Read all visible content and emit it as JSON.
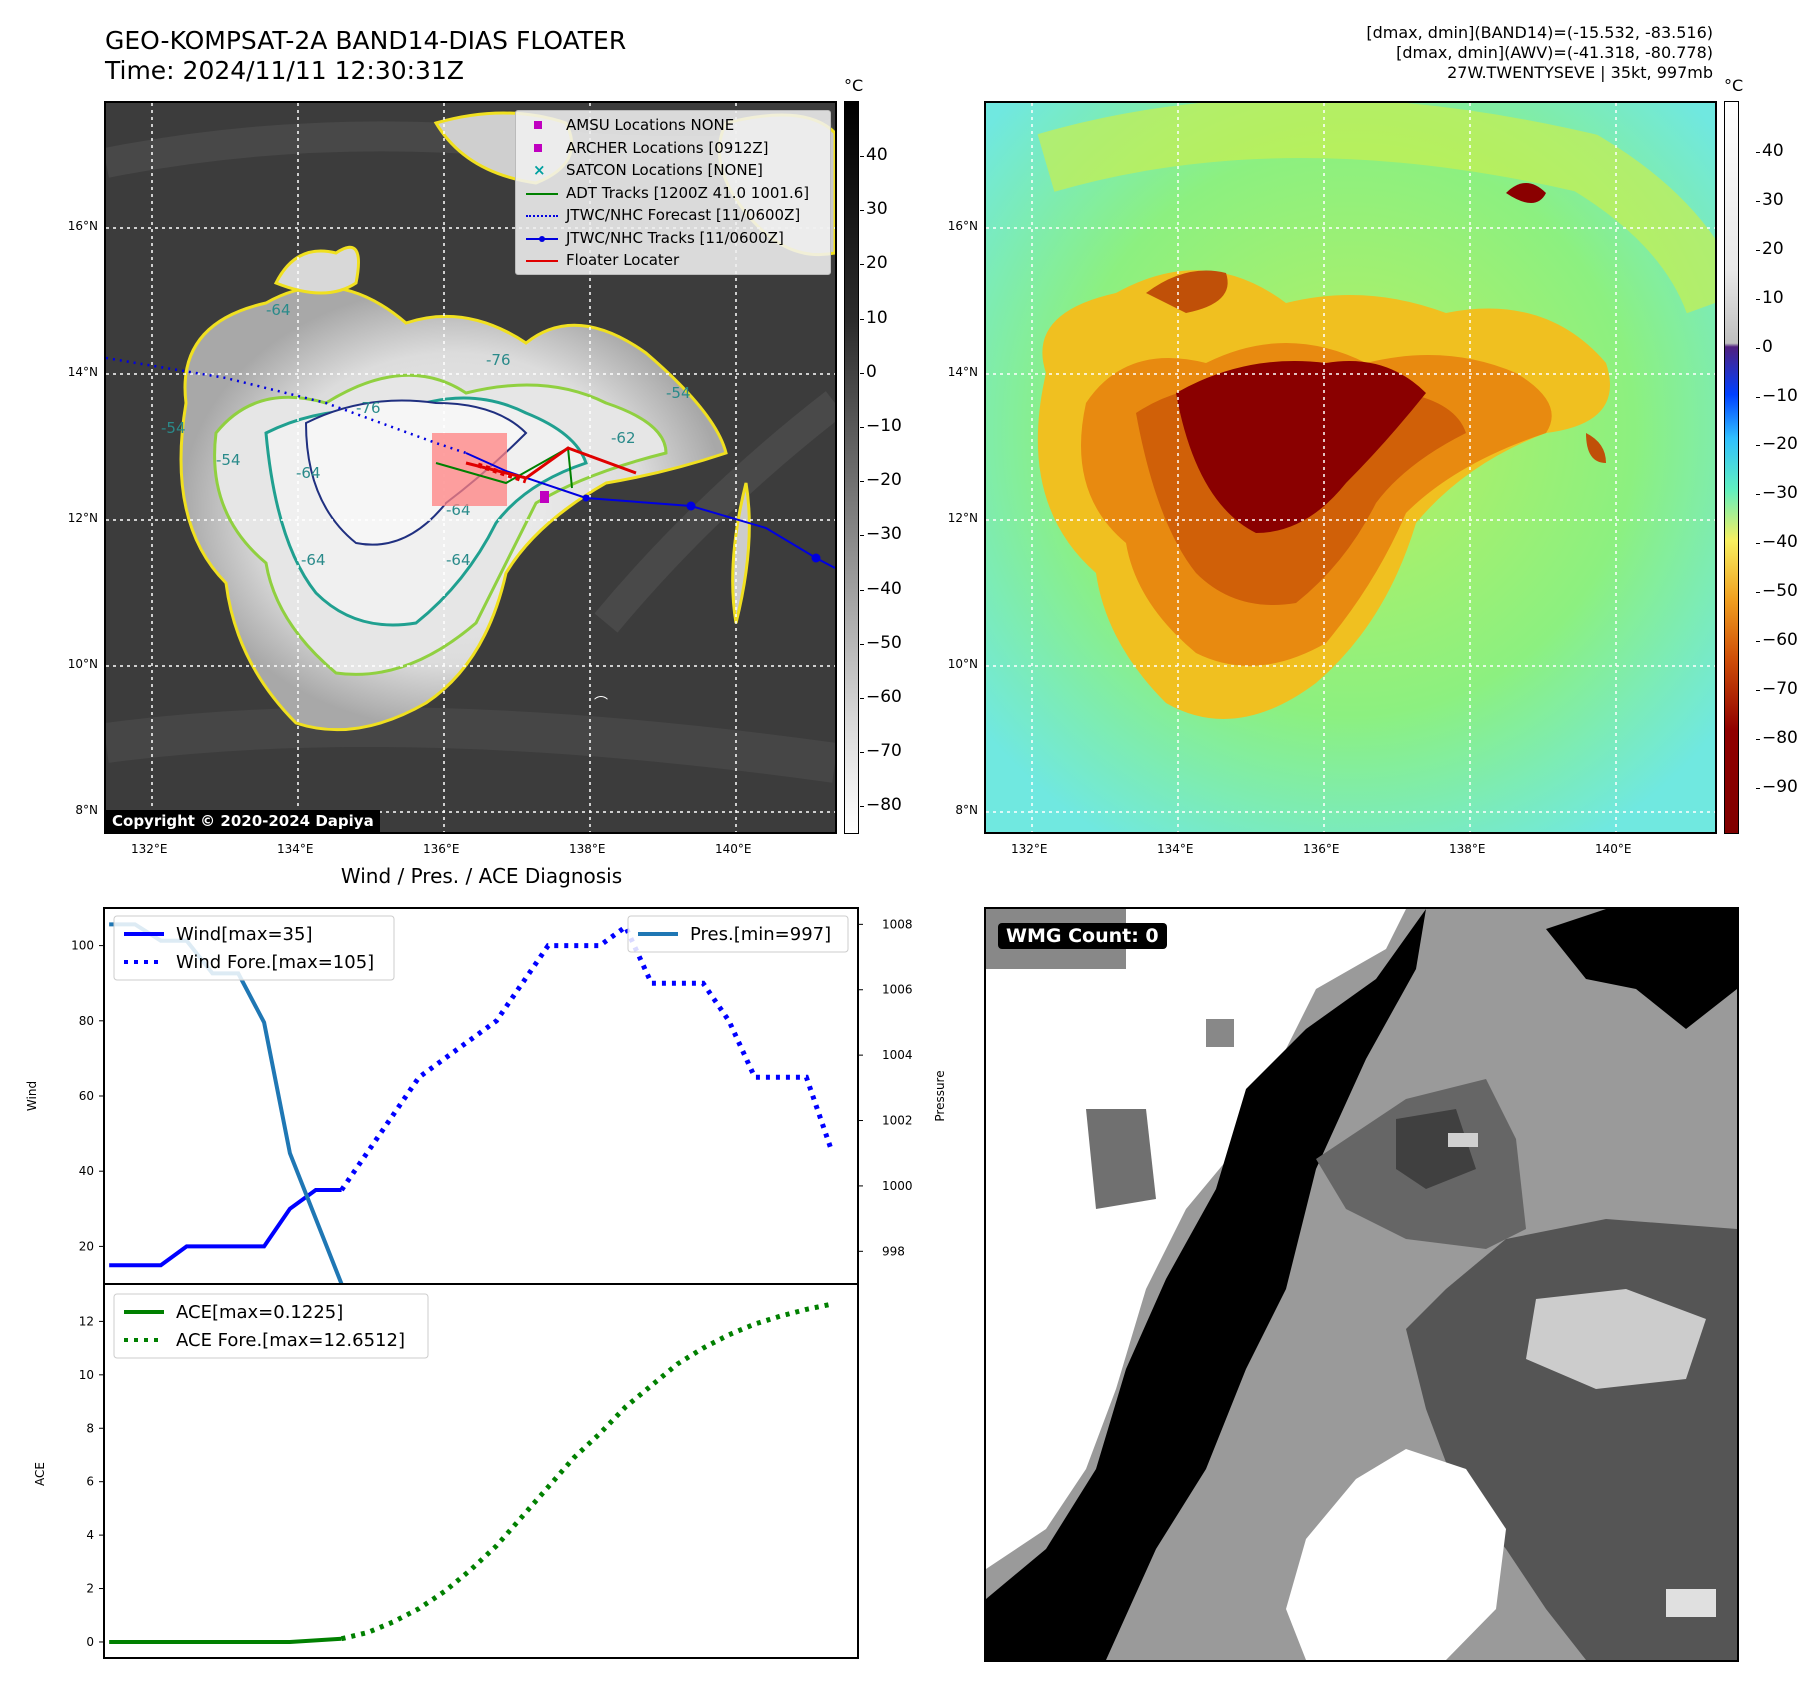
{
  "header": {
    "title_line1": "GEO-KOMPSAT-2A BAND14-DIAS FLOATER",
    "title_line2": "Time: 2024/11/11 12:30:31Z",
    "right_line1": "[dmax, dmin](BAND14)=(-15.532, -83.516)",
    "right_line2": "[dmax, dmin](AWV)=(-41.318, -80.778)",
    "right_line3": "27W.TWENTYSEVE | 35kt, 997mb"
  },
  "map": {
    "lat_labels": [
      "16°N",
      "14°N",
      "12°N",
      "10°N",
      "8°N"
    ],
    "lon_labels": [
      "132°E",
      "134°E",
      "136°E",
      "138°E",
      "140°E"
    ],
    "copyright": "Copyright © 2020-2024 Dapiya",
    "contour_labels": [
      "-64",
      "-64",
      "-64",
      "-64",
      "-64",
      "-54",
      "-54",
      "-54",
      "-62",
      "-76",
      "-76"
    ],
    "legend": [
      {
        "label": "AMSU Locations NONE",
        "color": "#c000c0",
        "kind": "square"
      },
      {
        "label": "ARCHER Locations [0912Z]",
        "color": "#c000c0",
        "kind": "square"
      },
      {
        "label": "SATCON Locations [NONE]",
        "color": "#00a0a0",
        "kind": "x"
      },
      {
        "label": "ADT Tracks [1200Z 41.0 1001.6]",
        "color": "#008000",
        "kind": "line"
      },
      {
        "label": "JTWC/NHC Forecast [11/0600Z]",
        "color": "#0000e0",
        "kind": "dotted"
      },
      {
        "label": "JTWC/NHC Tracks [11/0600Z]",
        "color": "#0000e0",
        "kind": "linedot"
      },
      {
        "label": "Floater Locater",
        "color": "#e00000",
        "kind": "line"
      }
    ],
    "gray_colorbar": {
      "unit": "°C",
      "ticks": [
        "40",
        "30",
        "20",
        "10",
        "0",
        "−10",
        "−20",
        "−30",
        "−40",
        "−50",
        "−60",
        "−70",
        "−80"
      ]
    },
    "color_colorbar": {
      "unit": "°C",
      "ticks": [
        "40",
        "30",
        "20",
        "10",
        "0",
        "−10",
        "−20",
        "−30",
        "−40",
        "−50",
        "−60",
        "−70",
        "−80",
        "−90"
      ]
    }
  },
  "diagnosis": {
    "title": "Wind / Pres. / ACE Diagnosis",
    "wmg_label": "WMG Count: 0"
  },
  "chart_data": [
    {
      "type": "line",
      "title": "Wind / Pres. / ACE Diagnosis",
      "ylabel": "Wind",
      "ylabel_right": "Pressure",
      "ylim": [
        10,
        110
      ],
      "ylim_right": [
        997,
        1008.5
      ],
      "yticks": [
        "100",
        "80",
        "60",
        "40",
        "20"
      ],
      "yticks_right": [
        "1008",
        "1006",
        "1004",
        "1002",
        "1000",
        "998"
      ],
      "x": [
        0,
        1,
        2,
        3,
        4,
        5,
        6,
        7,
        8,
        9,
        10,
        11,
        12,
        13,
        14,
        15,
        16,
        17,
        18,
        19,
        20,
        21,
        22,
        23,
        24,
        25,
        26,
        27,
        28
      ],
      "series": [
        {
          "name": "Wind[max=35]",
          "axis": "left",
          "color": "#0000ff",
          "style": "solid",
          "x": [
            0,
            1,
            2,
            3,
            4,
            5,
            6,
            7,
            8,
            9
          ],
          "values": [
            15,
            15,
            15,
            20,
            20,
            20,
            20,
            30,
            35,
            35
          ]
        },
        {
          "name": "Wind Fore.[max=105]",
          "axis": "left",
          "color": "#0000ff",
          "style": "dotted",
          "x": [
            9,
            10,
            11,
            12,
            13,
            14,
            15,
            16,
            17,
            18,
            19,
            20,
            21,
            22,
            23,
            24,
            25,
            26,
            27,
            28
          ],
          "values": [
            35,
            45,
            55,
            65,
            70,
            75,
            80,
            90,
            100,
            100,
            100,
            105,
            90,
            90,
            90,
            80,
            65,
            65,
            65,
            45
          ]
        },
        {
          "name": "Pres.[min=997]",
          "axis": "right",
          "color": "#1f77b4",
          "style": "solid",
          "x": [
            0,
            1,
            2,
            3,
            4,
            5,
            6,
            7,
            8,
            9
          ],
          "values": [
            1008,
            1008,
            1007.5,
            1007.5,
            1006.5,
            1006.5,
            1005,
            1001,
            999,
            997
          ]
        }
      ],
      "legend": [
        "Wind[max=35]",
        "Wind Fore.[max=105]"
      ],
      "legend_right": [
        "Pres.[min=997]"
      ]
    },
    {
      "type": "line",
      "ylabel": "ACE",
      "ylim": [
        -0.6,
        13.4
      ],
      "yticks": [
        "12",
        "10",
        "8",
        "6",
        "4",
        "2",
        "0"
      ],
      "series": [
        {
          "name": "ACE[max=0.1225]",
          "color": "#008000",
          "style": "solid",
          "x": [
            0,
            1,
            2,
            3,
            4,
            5,
            6,
            7,
            8,
            9
          ],
          "values": [
            0,
            0,
            0,
            0,
            0,
            0,
            0,
            0,
            0.06,
            0.1225
          ]
        },
        {
          "name": "ACE Fore.[max=12.6512]",
          "color": "#008000",
          "style": "dotted",
          "x": [
            9,
            10,
            11,
            12,
            13,
            14,
            15,
            16,
            17,
            18,
            19,
            20,
            21,
            22,
            23,
            24,
            25,
            26,
            27,
            28
          ],
          "values": [
            0.1225,
            0.35,
            0.75,
            1.25,
            1.9,
            2.7,
            3.6,
            4.7,
            5.8,
            6.9,
            7.8,
            8.8,
            9.6,
            10.4,
            11.0,
            11.5,
            11.9,
            12.2,
            12.45,
            12.6512
          ]
        }
      ],
      "legend": [
        "ACE[max=0.1225]",
        "ACE Fore.[max=12.6512]"
      ]
    }
  ]
}
